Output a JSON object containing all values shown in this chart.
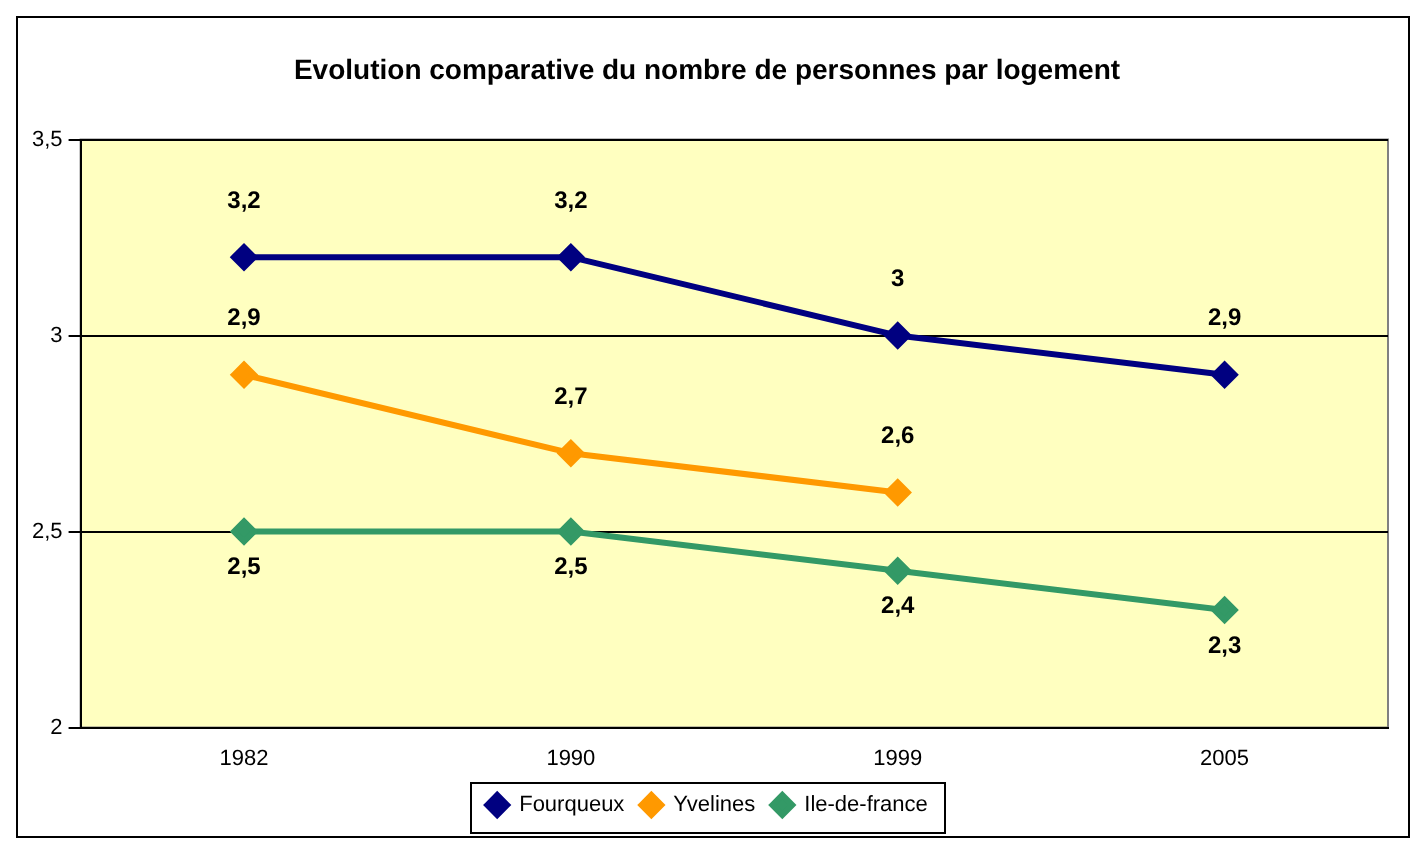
{
  "chart_data": {
    "type": "line",
    "title": "Evolution comparative du nombre de personnes par logement",
    "categories": [
      "1982",
      "1990",
      "1999",
      "2005"
    ],
    "series": [
      {
        "name": "Fourqueux",
        "color": "#000080",
        "values": [
          3.2,
          3.2,
          3.0,
          2.9
        ],
        "value_labels": [
          "3,2",
          "3,2",
          "3",
          "2,9"
        ]
      },
      {
        "name": "Yvelines",
        "color": "#ff9900",
        "values": [
          2.9,
          2.7,
          2.6,
          null
        ],
        "value_labels": [
          "2,9",
          "2,7",
          "2,6",
          null
        ]
      },
      {
        "name": "Ile-de-france",
        "color": "#339966",
        "values": [
          2.5,
          2.5,
          2.4,
          2.3
        ],
        "value_labels": [
          "2,5",
          "2,5",
          "2,4",
          "2,3"
        ]
      }
    ],
    "ylim": [
      2,
      3.5
    ],
    "yticks": [
      {
        "value": 2,
        "label": "2"
      },
      {
        "value": 2.5,
        "label": "2,5"
      },
      {
        "value": 3,
        "label": "3"
      },
      {
        "value": 3.5,
        "label": "3,5"
      }
    ],
    "grid": "y",
    "legend": "bottom",
    "marker": "diamond",
    "line_style": "solid"
  }
}
